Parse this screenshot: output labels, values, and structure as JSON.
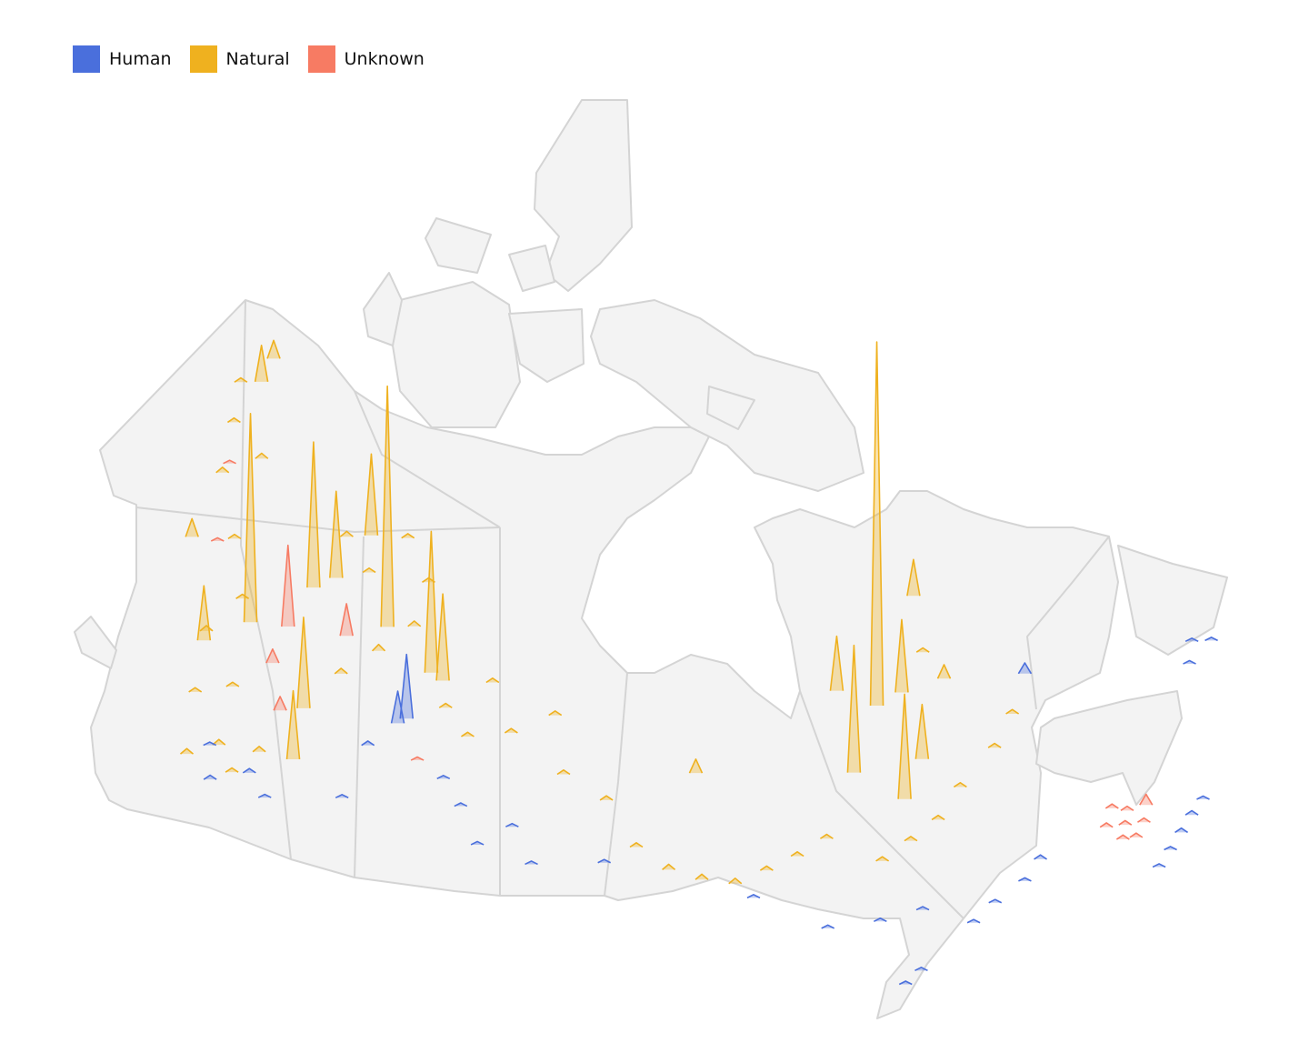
{
  "chart_data": {
    "type": "spike-map",
    "series": [
      {
        "name": "Human",
        "color": "#4a6fdc",
        "lon": [
          -111.5,
          -112,
          -67,
          -63.5,
          -62.5,
          -64.5,
          -61.5,
          -65.5,
          -72.5,
          -71.2,
          -74.5,
          -76,
          -79.5,
          -80.5,
          -78.5,
          -81,
          -84,
          -105,
          -106.5,
          -108,
          -103,
          -101.5,
          -120,
          -122,
          -123,
          -118.5,
          -114,
          -113.5,
          -56.5,
          -57.5,
          -55.5,
          -97,
          -88
        ],
        "lat": [
          55.1,
          54.8,
          54.3,
          45.0,
          45.4,
          44.6,
          45.7,
          44.2,
          46.2,
          46.8,
          45.8,
          45.3,
          44.0,
          43.6,
          46.5,
          46.5,
          46.7,
          50.5,
          52.0,
          53.0,
          51.5,
          50.0,
          50.5,
          49.5,
          50.8,
          49.8,
          51.0,
          53.5,
          51.5,
          50.8,
          51.0,
          50.3,
          48.5
        ],
        "size": [
          60000,
          30000,
          10000,
          4000,
          4000,
          3000,
          3000,
          3000,
          3000,
          4000,
          3000,
          3000,
          3000,
          3000,
          3000,
          3000,
          3000,
          3000,
          3000,
          3000,
          3000,
          3000,
          4000,
          4000,
          3000,
          3000,
          3000,
          4000,
          3000,
          3000,
          3000,
          3000,
          3000
        ]
      },
      {
        "name": "Natural",
        "color": "#efb11f",
        "lon": [
          -77.5,
          -115,
          -124.6,
          -121.6,
          -120.3,
          -119.1,
          -110.7,
          -109.7,
          -117.8,
          -118.5,
          -75.5,
          -80.3,
          -72,
          -77.6,
          -135.5,
          -136.1,
          -126.8,
          -131.8,
          -75.7,
          -72.3,
          -90.9,
          -80,
          -124,
          -122.5,
          -121,
          -120,
          -125.5,
          -123.5,
          -127,
          -126,
          -129,
          -133,
          -135,
          -137,
          -131,
          -117,
          -115,
          -113,
          -118,
          -121,
          -116,
          -113,
          -109,
          -107,
          -104,
          -100,
          -97,
          -95,
          -93,
          -91,
          -89,
          -87,
          -85,
          -83,
          -80,
          -78,
          -76,
          -74,
          -71,
          -69,
          -73,
          -101,
          -106
        ],
        "lat": [
          55.5,
          58.6,
          56.3,
          58.9,
          59.7,
          62.0,
          57.3,
          57.1,
          51.8,
          54.0,
          55.7,
          53.0,
          59.4,
          51.3,
          65.1,
          66.2,
          54.6,
          58.0,
          52.7,
          55.6,
          54.1,
          56.6,
          50.0,
          51.0,
          50.2,
          51.5,
          52.5,
          53.5,
          55.0,
          57.0,
          59.0,
          61.0,
          63.0,
          64.5,
          62.5,
          56.0,
          57.5,
          59.0,
          60.5,
          61.5,
          62.5,
          61.0,
          56.0,
          55.0,
          55.5,
          54.0,
          53.0,
          51.0,
          50.0,
          49.5,
          49.2,
          49.6,
          50.0,
          50.5,
          49.0,
          49.5,
          50.0,
          51.0,
          52.0,
          53.0,
          57.0,
          56.5,
          57.5
        ],
        "size": [
          340000,
          225000,
          195000,
          136000,
          81000,
          76000,
          132000,
          81000,
          64000,
          85000,
          68000,
          119000,
          34000,
          98000,
          34000,
          17000,
          51000,
          17000,
          51000,
          13000,
          13000,
          51000,
          5000,
          5000,
          4000,
          5000,
          4000,
          4000,
          5000,
          4000,
          4000,
          5000,
          4000,
          4000,
          5000,
          5000,
          6000,
          5000,
          4000,
          5000,
          4000,
          4000,
          4000,
          4000,
          4000,
          4000,
          4000,
          4000,
          5000,
          5000,
          5000,
          4000,
          4000,
          4000,
          4000,
          4000,
          4000,
          4000,
          4000,
          4000,
          4000,
          4000,
          4000
        ]
      },
      {
        "name": "Unknown",
        "color": "#f77b63",
        "lon": [
          -122,
          -117.7,
          -121.8,
          -119.9,
          -64.4,
          -66,
          -65.5,
          -66.5,
          -65,
          -67,
          -66.2,
          -65.8,
          -133,
          -130,
          -110
        ],
        "lat": [
          56.9,
          57.6,
          55.2,
          53.5,
          46.8,
          46.5,
          47.0,
          46.0,
          46.2,
          46.8,
          47.4,
          45.8,
          61.5,
          58.5,
          53.5
        ],
        "size": [
          76000,
          30000,
          13000,
          13000,
          10000,
          4000,
          4000,
          4000,
          4000,
          4000,
          4000,
          4000,
          3000,
          3000,
          3000
        ]
      }
    ]
  }
}
